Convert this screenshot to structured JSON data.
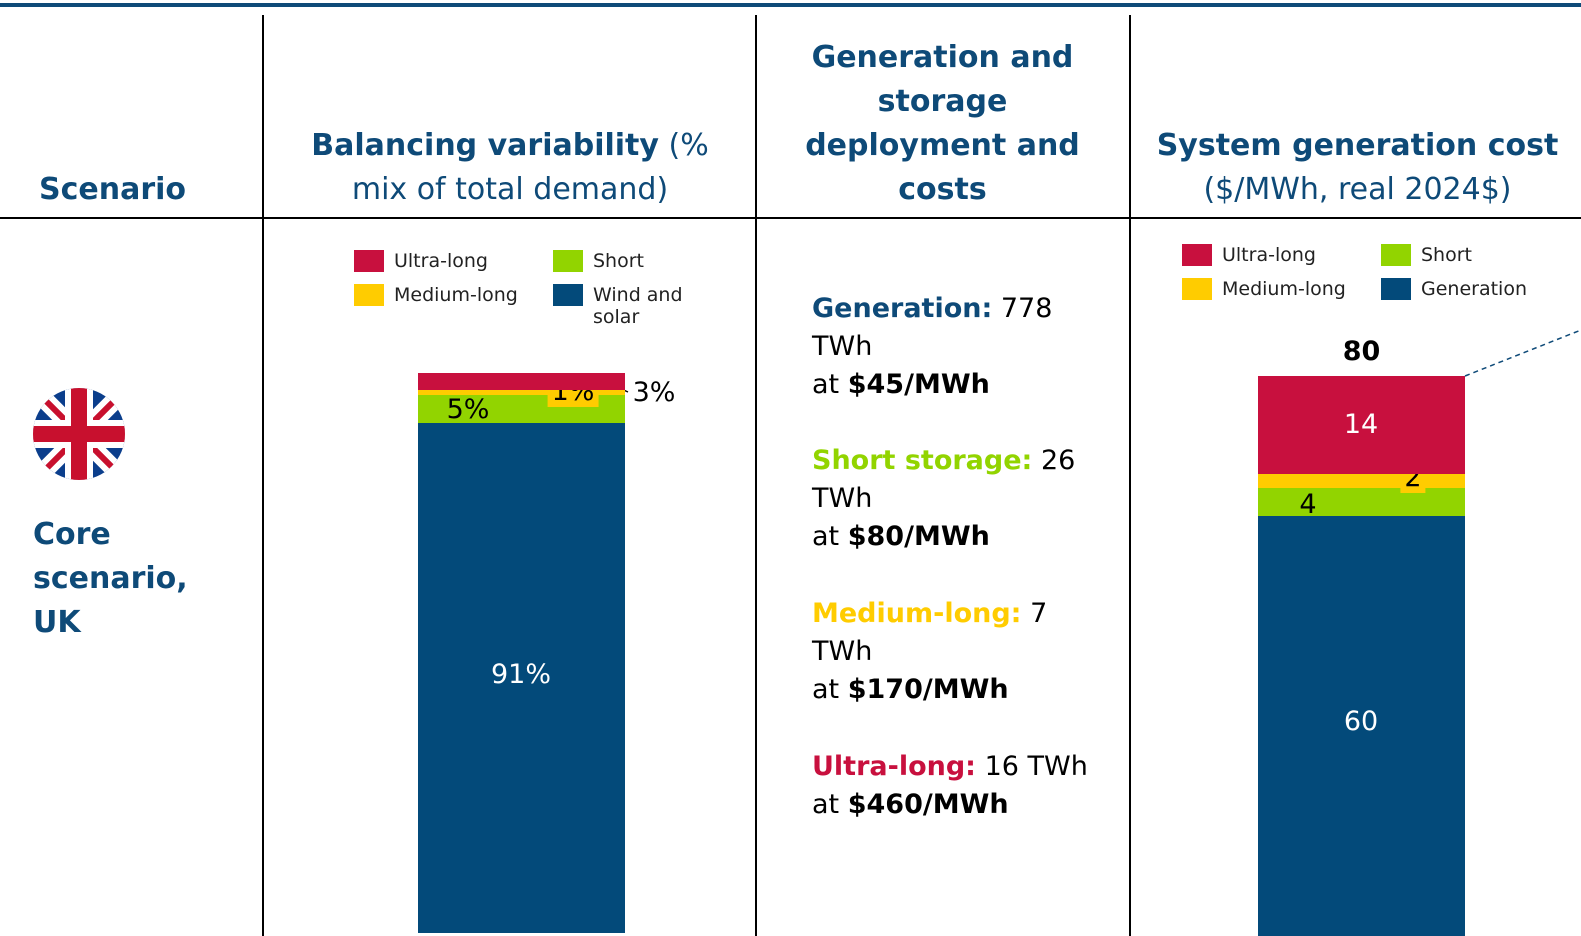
{
  "header": {
    "scenario": "Scenario",
    "balancing_bold": "Balancing variability",
    "balancing_rest": "(% mix of total demand)",
    "deployment": "Generation and storage deployment and costs",
    "cost_bold": "System generation cost",
    "cost_rest": "($/MWh, real 2024$)"
  },
  "scenario": {
    "label": "Core scenario, UK"
  },
  "deployment": [
    {
      "label": "Generation:",
      "amount": "778 TWh",
      "at": "at",
      "price": "$45/MWh",
      "color": "#0e4a78"
    },
    {
      "label": "Short storage:",
      "amount": "26 TWh",
      "at": "at",
      "price": "$80/MWh",
      "color": "#92d400"
    },
    {
      "label": "Medium-long:",
      "amount": "7 TWh",
      "at": "at",
      "price": "$170/MWh",
      "color": "#ffcc00"
    },
    {
      "label": "Ultra-long:",
      "amount": "16 TWh",
      "at": "at",
      "price": "$460/MWh",
      "color": "#c8103e"
    }
  ],
  "chart_data": [
    {
      "type": "stacked_bar",
      "series": [
        {
          "name": "Wind and solar",
          "color": "#034a7a",
          "values": [
            91
          ],
          "value_labels": [
            "91%"
          ]
        },
        {
          "name": "Short",
          "color": "#92d400",
          "values": [
            5
          ],
          "value_labels": [
            "5%"
          ]
        },
        {
          "name": "Medium-long",
          "color": "#ffcc00",
          "values": [
            1
          ],
          "value_labels": [
            "1%"
          ]
        },
        {
          "name": "Ultra-long",
          "color": "#c8103e",
          "values": [
            3
          ],
          "value_labels": [
            "3%"
          ]
        }
      ]
    },
    {
      "type": "stacked_bar",
      "total": 80,
      "series": [
        {
          "name": "Generation",
          "color": "#034a7a",
          "values": [
            60
          ]
        },
        {
          "name": "Short",
          "color": "#92d400",
          "values": [
            4
          ]
        },
        {
          "name": "Medium-long",
          "color": "#ffcc00",
          "values": [
            2
          ]
        },
        {
          "name": "Ultra-long",
          "color": "#c8103e",
          "values": [
            14
          ]
        }
      ]
    }
  ]
}
